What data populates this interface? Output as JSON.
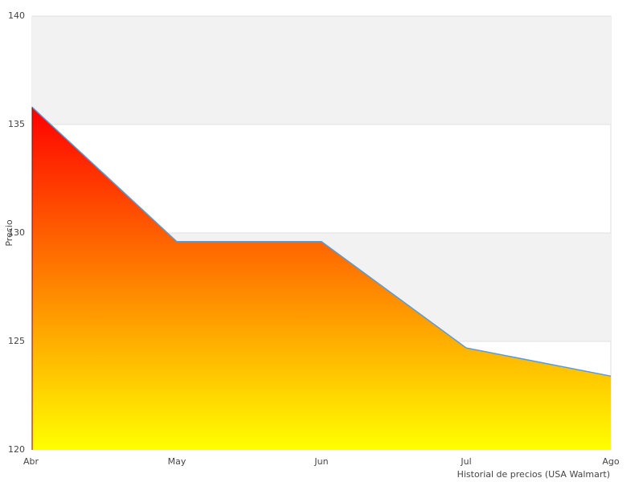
{
  "chart_data": {
    "type": "area",
    "categories": [
      "Abr",
      "May",
      "Jun",
      "Jul",
      "Ago"
    ],
    "values": [
      135.8,
      129.6,
      129.6,
      124.7,
      123.4
    ],
    "ylim": [
      120,
      140
    ],
    "yticks": [
      120,
      125,
      130,
      135,
      140
    ],
    "y_label": "Precio",
    "x_label": "Historial de precios (USA Walmart)",
    "line_color": "#5b9bd5",
    "gradient": [
      "#ff0000",
      "#ffff00"
    ],
    "band_color": "#f2f2f2"
  }
}
